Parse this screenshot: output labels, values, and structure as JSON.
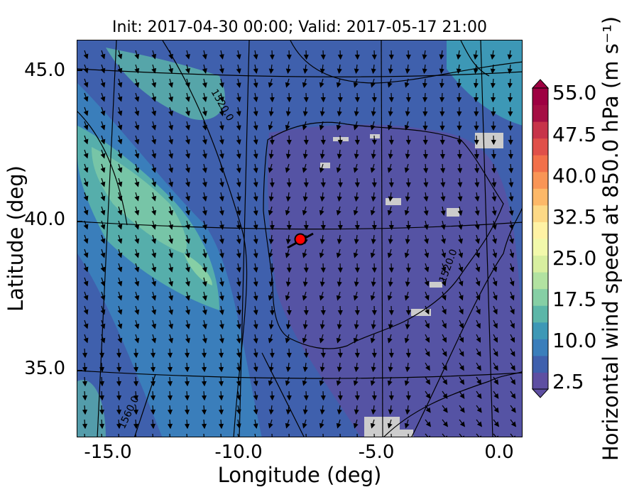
{
  "title": "Init: 2017-04-30 00:00; Valid: 2017-05-17 21:00",
  "xlabel": "Longitude (deg)",
  "ylabel": "Latitude (deg)",
  "colorbar": {
    "label": "Horizontal wind speed at 850.0 hPa (m s⁻¹)",
    "ticks": [
      "55.0",
      "47.5",
      "40.0",
      "32.5",
      "25.0",
      "17.5",
      "10.0",
      "2.5"
    ],
    "colors": [
      "#5e4fa2",
      "#3f60ad",
      "#3a7ebb",
      "#3d98b6",
      "#5cb6a8",
      "#86cfa5",
      "#b2e2a1",
      "#d8efa0",
      "#f2f9ab",
      "#fff2a4",
      "#fdd986",
      "#fdb868",
      "#f99556",
      "#f2704a",
      "#e0504a",
      "#c7344a",
      "#a50f44",
      "#9e0142"
    ]
  },
  "chart_data": {
    "type": "map",
    "title": "Init: 2017-04-30 00:00; Valid: 2017-05-17 21:00",
    "xlabel": "Longitude (deg)",
    "ylabel": "Latitude (deg)",
    "xticks": [
      "-15.0",
      "-10.0",
      "-5.0",
      "0.0"
    ],
    "yticks": [
      "45.0",
      "40.0",
      "35.0"
    ],
    "xlim": [
      -16,
      0.3
    ],
    "ylim": [
      32.7,
      46.1
    ],
    "colorbar_range": [
      2.5,
      55.0
    ],
    "contour_labels": [
      "1520.0",
      "1520.0",
      "1560.0"
    ],
    "marker": {
      "lon": -7.6,
      "lat": 39.3,
      "color": "#ff0000"
    },
    "variable": "Horizontal wind speed at 850.0 hPa",
    "units": "m s-1"
  }
}
